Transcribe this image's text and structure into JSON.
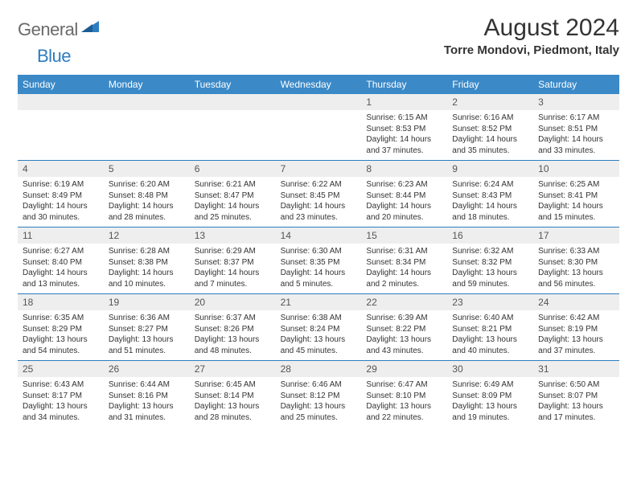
{
  "logo": {
    "text1": "General",
    "text2": "Blue"
  },
  "title": "August 2024",
  "location": "Torre Mondovi, Piedmont, Italy",
  "colors": {
    "header_bg": "#3b89c7",
    "header_text": "#ffffff",
    "daynum_bg": "#eeeeee",
    "daynum_text": "#555555",
    "body_text": "#333333",
    "rule": "#2d7dc0",
    "logo_gray": "#6a6a6a",
    "logo_blue": "#2d7dc0",
    "page_bg": "#ffffff"
  },
  "typography": {
    "title_fontsize": 30,
    "location_fontsize": 15,
    "header_fontsize": 12,
    "daynum_fontsize": 12,
    "body_fontsize": 10,
    "logo_fontsize": 22
  },
  "layout": {
    "columns": 7,
    "rows": 5,
    "cell_min_height": 82
  },
  "weekdays": [
    "Sunday",
    "Monday",
    "Tuesday",
    "Wednesday",
    "Thursday",
    "Friday",
    "Saturday"
  ],
  "weeks": [
    [
      {
        "n": "",
        "sr": "",
        "ss": "",
        "dl": ""
      },
      {
        "n": "",
        "sr": "",
        "ss": "",
        "dl": ""
      },
      {
        "n": "",
        "sr": "",
        "ss": "",
        "dl": ""
      },
      {
        "n": "",
        "sr": "",
        "ss": "",
        "dl": ""
      },
      {
        "n": "1",
        "sr": "Sunrise: 6:15 AM",
        "ss": "Sunset: 8:53 PM",
        "dl": "Daylight: 14 hours and 37 minutes."
      },
      {
        "n": "2",
        "sr": "Sunrise: 6:16 AM",
        "ss": "Sunset: 8:52 PM",
        "dl": "Daylight: 14 hours and 35 minutes."
      },
      {
        "n": "3",
        "sr": "Sunrise: 6:17 AM",
        "ss": "Sunset: 8:51 PM",
        "dl": "Daylight: 14 hours and 33 minutes."
      }
    ],
    [
      {
        "n": "4",
        "sr": "Sunrise: 6:19 AM",
        "ss": "Sunset: 8:49 PM",
        "dl": "Daylight: 14 hours and 30 minutes."
      },
      {
        "n": "5",
        "sr": "Sunrise: 6:20 AM",
        "ss": "Sunset: 8:48 PM",
        "dl": "Daylight: 14 hours and 28 minutes."
      },
      {
        "n": "6",
        "sr": "Sunrise: 6:21 AM",
        "ss": "Sunset: 8:47 PM",
        "dl": "Daylight: 14 hours and 25 minutes."
      },
      {
        "n": "7",
        "sr": "Sunrise: 6:22 AM",
        "ss": "Sunset: 8:45 PM",
        "dl": "Daylight: 14 hours and 23 minutes."
      },
      {
        "n": "8",
        "sr": "Sunrise: 6:23 AM",
        "ss": "Sunset: 8:44 PM",
        "dl": "Daylight: 14 hours and 20 minutes."
      },
      {
        "n": "9",
        "sr": "Sunrise: 6:24 AM",
        "ss": "Sunset: 8:43 PM",
        "dl": "Daylight: 14 hours and 18 minutes."
      },
      {
        "n": "10",
        "sr": "Sunrise: 6:25 AM",
        "ss": "Sunset: 8:41 PM",
        "dl": "Daylight: 14 hours and 15 minutes."
      }
    ],
    [
      {
        "n": "11",
        "sr": "Sunrise: 6:27 AM",
        "ss": "Sunset: 8:40 PM",
        "dl": "Daylight: 14 hours and 13 minutes."
      },
      {
        "n": "12",
        "sr": "Sunrise: 6:28 AM",
        "ss": "Sunset: 8:38 PM",
        "dl": "Daylight: 14 hours and 10 minutes."
      },
      {
        "n": "13",
        "sr": "Sunrise: 6:29 AM",
        "ss": "Sunset: 8:37 PM",
        "dl": "Daylight: 14 hours and 7 minutes."
      },
      {
        "n": "14",
        "sr": "Sunrise: 6:30 AM",
        "ss": "Sunset: 8:35 PM",
        "dl": "Daylight: 14 hours and 5 minutes."
      },
      {
        "n": "15",
        "sr": "Sunrise: 6:31 AM",
        "ss": "Sunset: 8:34 PM",
        "dl": "Daylight: 14 hours and 2 minutes."
      },
      {
        "n": "16",
        "sr": "Sunrise: 6:32 AM",
        "ss": "Sunset: 8:32 PM",
        "dl": "Daylight: 13 hours and 59 minutes."
      },
      {
        "n": "17",
        "sr": "Sunrise: 6:33 AM",
        "ss": "Sunset: 8:30 PM",
        "dl": "Daylight: 13 hours and 56 minutes."
      }
    ],
    [
      {
        "n": "18",
        "sr": "Sunrise: 6:35 AM",
        "ss": "Sunset: 8:29 PM",
        "dl": "Daylight: 13 hours and 54 minutes."
      },
      {
        "n": "19",
        "sr": "Sunrise: 6:36 AM",
        "ss": "Sunset: 8:27 PM",
        "dl": "Daylight: 13 hours and 51 minutes."
      },
      {
        "n": "20",
        "sr": "Sunrise: 6:37 AM",
        "ss": "Sunset: 8:26 PM",
        "dl": "Daylight: 13 hours and 48 minutes."
      },
      {
        "n": "21",
        "sr": "Sunrise: 6:38 AM",
        "ss": "Sunset: 8:24 PM",
        "dl": "Daylight: 13 hours and 45 minutes."
      },
      {
        "n": "22",
        "sr": "Sunrise: 6:39 AM",
        "ss": "Sunset: 8:22 PM",
        "dl": "Daylight: 13 hours and 43 minutes."
      },
      {
        "n": "23",
        "sr": "Sunrise: 6:40 AM",
        "ss": "Sunset: 8:21 PM",
        "dl": "Daylight: 13 hours and 40 minutes."
      },
      {
        "n": "24",
        "sr": "Sunrise: 6:42 AM",
        "ss": "Sunset: 8:19 PM",
        "dl": "Daylight: 13 hours and 37 minutes."
      }
    ],
    [
      {
        "n": "25",
        "sr": "Sunrise: 6:43 AM",
        "ss": "Sunset: 8:17 PM",
        "dl": "Daylight: 13 hours and 34 minutes."
      },
      {
        "n": "26",
        "sr": "Sunrise: 6:44 AM",
        "ss": "Sunset: 8:16 PM",
        "dl": "Daylight: 13 hours and 31 minutes."
      },
      {
        "n": "27",
        "sr": "Sunrise: 6:45 AM",
        "ss": "Sunset: 8:14 PM",
        "dl": "Daylight: 13 hours and 28 minutes."
      },
      {
        "n": "28",
        "sr": "Sunrise: 6:46 AM",
        "ss": "Sunset: 8:12 PM",
        "dl": "Daylight: 13 hours and 25 minutes."
      },
      {
        "n": "29",
        "sr": "Sunrise: 6:47 AM",
        "ss": "Sunset: 8:10 PM",
        "dl": "Daylight: 13 hours and 22 minutes."
      },
      {
        "n": "30",
        "sr": "Sunrise: 6:49 AM",
        "ss": "Sunset: 8:09 PM",
        "dl": "Daylight: 13 hours and 19 minutes."
      },
      {
        "n": "31",
        "sr": "Sunrise: 6:50 AM",
        "ss": "Sunset: 8:07 PM",
        "dl": "Daylight: 13 hours and 17 minutes."
      }
    ]
  ]
}
